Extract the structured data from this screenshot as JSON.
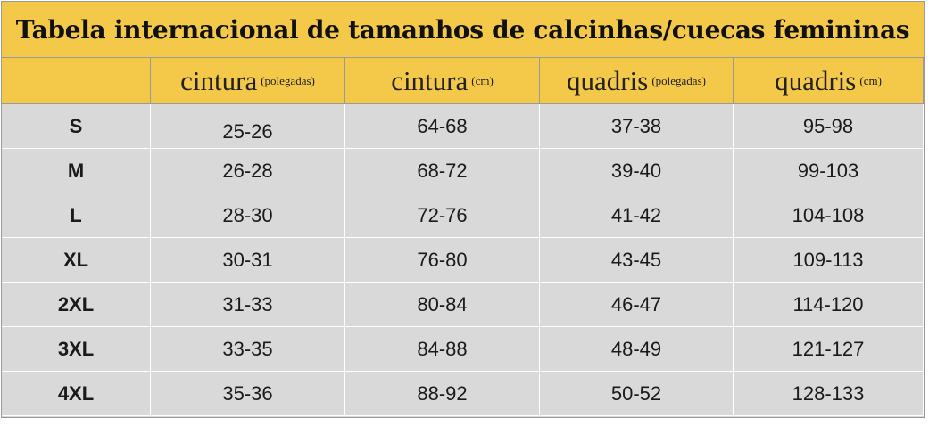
{
  "title": "Tabela internacional de tamanhos de calcinhas/cuecas femininas",
  "columns": [
    {
      "main": "",
      "unit": ""
    },
    {
      "main": "cintura",
      "unit": "(polegadas)"
    },
    {
      "main": "cintura",
      "unit": "(cm)"
    },
    {
      "main": "quadris",
      "unit": "(polegadas)"
    },
    {
      "main": "quadris",
      "unit": "(cm)"
    }
  ],
  "rows": [
    [
      "S",
      "25-26",
      "64-68",
      "37-38",
      "95-98"
    ],
    [
      "M",
      "26-28",
      "68-72",
      "39-40",
      "99-103"
    ],
    [
      "L",
      "28-30",
      "72-76",
      "41-42",
      "104-108"
    ],
    [
      "XL",
      "30-31",
      "76-80",
      "43-45",
      "109-113"
    ],
    [
      "2XL",
      "31-33",
      "80-84",
      "46-47",
      "114-120"
    ],
    [
      "3XL",
      "33-35",
      "84-88",
      "48-49",
      "121-127"
    ],
    [
      "4XL",
      "35-36",
      "88-92",
      "50-52",
      "128-133"
    ]
  ]
}
